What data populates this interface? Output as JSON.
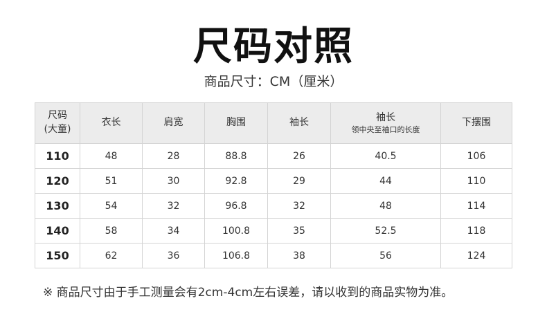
{
  "title": "尺码对照",
  "subtitle": "商品尺寸：CM（厘米）",
  "table": {
    "headers": [
      {
        "main": "尺码",
        "sub": "(大童)"
      },
      {
        "main": "衣长"
      },
      {
        "main": "肩宽"
      },
      {
        "main": "胸围"
      },
      {
        "main": "袖长"
      },
      {
        "main": "袖长",
        "sub": "领中央至袖口的长度"
      },
      {
        "main": "下摆围"
      }
    ],
    "rows": [
      [
        "110",
        "48",
        "28",
        "88.8",
        "26",
        "40.5",
        "106"
      ],
      [
        "120",
        "51",
        "30",
        "92.8",
        "29",
        "44",
        "110"
      ],
      [
        "130",
        "54",
        "32",
        "96.8",
        "32",
        "48",
        "114"
      ],
      [
        "140",
        "58",
        "34",
        "100.8",
        "35",
        "52.5",
        "118"
      ],
      [
        "150",
        "62",
        "36",
        "106.8",
        "38",
        "56",
        "124"
      ]
    ]
  },
  "note": "※ 商品尺寸由于手工测量会有2cm-4cm左右误差，请以收到的商品实物为准。"
}
